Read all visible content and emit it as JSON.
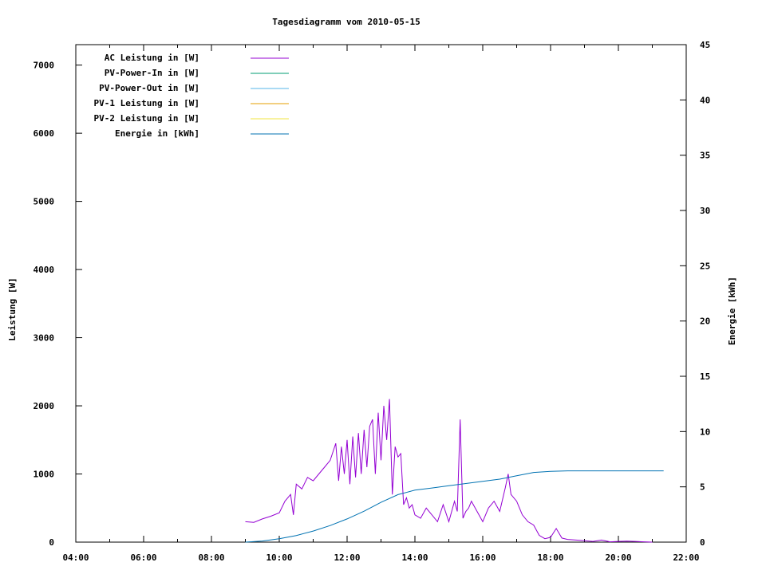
{
  "chart_data": {
    "type": "line",
    "title": "Tagesdiagramm vom 2010-05-15",
    "xlabel": "",
    "ylabel": "Leistung [W]",
    "y2label": "Energie [kWh]",
    "xlim": [
      "04:00",
      "22:00"
    ],
    "x_ticks": [
      "04:00",
      "06:00",
      "08:00",
      "10:00",
      "12:00",
      "14:00",
      "16:00",
      "18:00",
      "20:00",
      "22:00"
    ],
    "ylim": [
      0,
      7300
    ],
    "y_ticks": [
      0,
      1000,
      2000,
      3000,
      4000,
      5000,
      6000,
      7000
    ],
    "y2lim": [
      0,
      45
    ],
    "y2_ticks": [
      0,
      5,
      10,
      15,
      20,
      25,
      30,
      35,
      40,
      45
    ],
    "grid": false,
    "legend_position": "top-left",
    "legend": [
      {
        "name": "AC Leistung in [W]",
        "color": "#9400d3"
      },
      {
        "name": "PV-Power-In in [W]",
        "color": "#009e73"
      },
      {
        "name": "PV-Power-Out in [W]",
        "color": "#56b4e9"
      },
      {
        "name": "PV-1 Leistung in [W]",
        "color": "#e69f00"
      },
      {
        "name": "PV-2 Leistung in [W]",
        "color": "#f0e442"
      },
      {
        "name": "Energie in [kWh]",
        "color": "#0072b2"
      }
    ],
    "series": [
      {
        "name": "AC Leistung in [W]",
        "axis": "y",
        "color": "#9400d3",
        "x": [
          "09:00",
          "09:15",
          "09:30",
          "09:45",
          "10:00",
          "10:10",
          "10:20",
          "10:25",
          "10:30",
          "10:40",
          "10:50",
          "11:00",
          "11:10",
          "11:20",
          "11:30",
          "11:40",
          "11:45",
          "11:50",
          "11:55",
          "12:00",
          "12:05",
          "12:10",
          "12:15",
          "12:20",
          "12:25",
          "12:30",
          "12:35",
          "12:40",
          "12:45",
          "12:50",
          "12:55",
          "13:00",
          "13:05",
          "13:10",
          "13:15",
          "13:20",
          "13:25",
          "13:30",
          "13:35",
          "13:40",
          "13:45",
          "13:50",
          "13:55",
          "14:00",
          "14:10",
          "14:20",
          "14:30",
          "14:40",
          "14:50",
          "15:00",
          "15:10",
          "15:15",
          "15:20",
          "15:25",
          "15:30",
          "15:35",
          "15:40",
          "15:50",
          "16:00",
          "16:10",
          "16:20",
          "16:30",
          "16:40",
          "16:45",
          "16:50",
          "17:00",
          "17:10",
          "17:20",
          "17:30",
          "17:40",
          "17:50",
          "18:00",
          "18:10",
          "18:20",
          "18:30",
          "18:45",
          "19:00",
          "19:15",
          "19:30",
          "19:45",
          "20:00",
          "20:15",
          "20:30",
          "20:45",
          "21:00"
        ],
        "values": [
          300,
          290,
          340,
          380,
          430,
          600,
          700,
          400,
          850,
          780,
          950,
          900,
          1000,
          1100,
          1200,
          1450,
          900,
          1400,
          1000,
          1500,
          850,
          1550,
          950,
          1600,
          1000,
          1650,
          1100,
          1700,
          1800,
          1000,
          1900,
          1200,
          2000,
          1500,
          2100,
          700,
          1400,
          1250,
          1300,
          550,
          650,
          500,
          550,
          400,
          350,
          500,
          400,
          300,
          550,
          300,
          600,
          450,
          1800,
          350,
          450,
          500,
          600,
          450,
          300,
          500,
          600,
          450,
          800,
          1000,
          700,
          600,
          400,
          300,
          250,
          100,
          50,
          70,
          200,
          60,
          40,
          30,
          20,
          10,
          30,
          5,
          10,
          15,
          10,
          5,
          0
        ]
      },
      {
        "name": "Energie in [kWh]",
        "axis": "y2",
        "color": "#0072b2",
        "x": [
          "09:00",
          "09:30",
          "10:00",
          "10:30",
          "11:00",
          "11:30",
          "12:00",
          "12:30",
          "13:00",
          "13:30",
          "14:00",
          "14:30",
          "15:00",
          "15:30",
          "16:00",
          "16:30",
          "17:00",
          "17:30",
          "18:00",
          "18:30",
          "19:00",
          "20:00",
          "21:00",
          "21:20"
        ],
        "values": [
          0,
          0.1,
          0.3,
          0.6,
          1.0,
          1.5,
          2.1,
          2.8,
          3.6,
          4.3,
          4.7,
          4.9,
          5.1,
          5.3,
          5.5,
          5.7,
          6.0,
          6.3,
          6.4,
          6.45,
          6.45,
          6.45,
          6.45,
          6.45
        ]
      }
    ]
  }
}
